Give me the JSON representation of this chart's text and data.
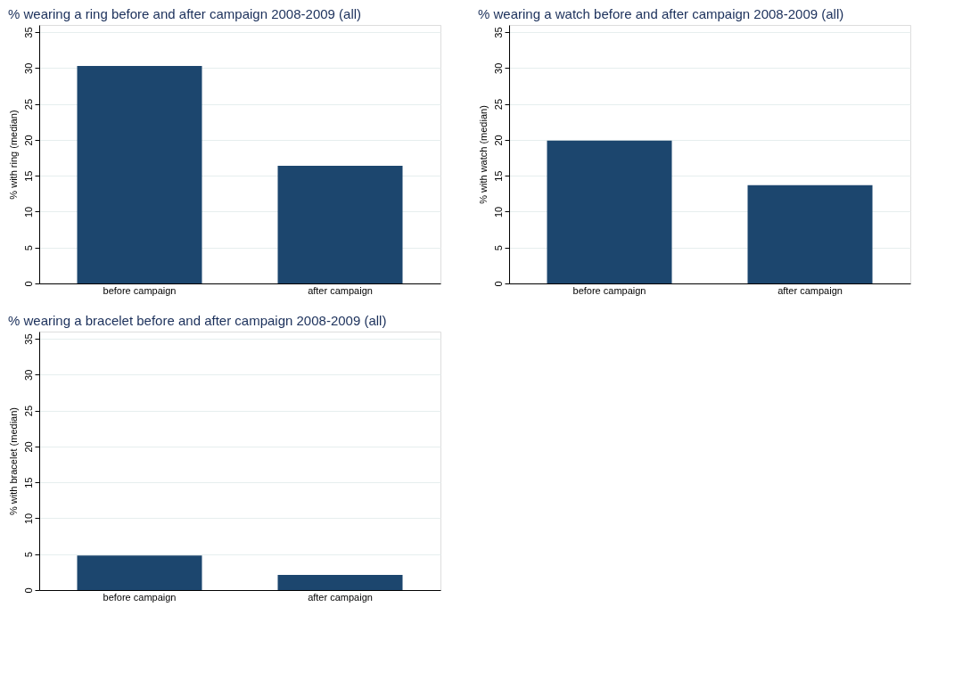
{
  "chart_data": [
    {
      "type": "bar",
      "title": "% wearing a ring before and after campaign 2008-2009 (all)",
      "ylabel": "% with ring (median)",
      "categories": [
        "before campaign",
        "after campaign"
      ],
      "values": [
        30.3,
        16.4
      ],
      "color": "#1c466e",
      "ylim": [
        0,
        36
      ],
      "yticks": [
        0,
        5,
        10,
        15,
        20,
        25,
        30,
        35
      ],
      "grid": "y"
    },
    {
      "type": "bar",
      "title": "% wearing a watch before and after campaign 2008-2009 (all)",
      "ylabel": "% with watch (median)",
      "categories": [
        "before campaign",
        "after campaign"
      ],
      "values": [
        19.9,
        13.7
      ],
      "color": "#1c466e",
      "ylim": [
        0,
        36
      ],
      "yticks": [
        0,
        5,
        10,
        15,
        20,
        25,
        30,
        35
      ],
      "grid": "y"
    },
    {
      "type": "bar",
      "title": "% wearing a bracelet before and after campaign 2008-2009 (all)",
      "ylabel": "% with bracelet (median)",
      "categories": [
        "before campaign",
        "after campaign"
      ],
      "values": [
        4.8,
        2.1
      ],
      "color": "#1c466e",
      "ylim": [
        0,
        36
      ],
      "yticks": [
        0,
        5,
        10,
        15,
        20,
        25,
        30,
        35
      ],
      "grid": "y"
    }
  ]
}
